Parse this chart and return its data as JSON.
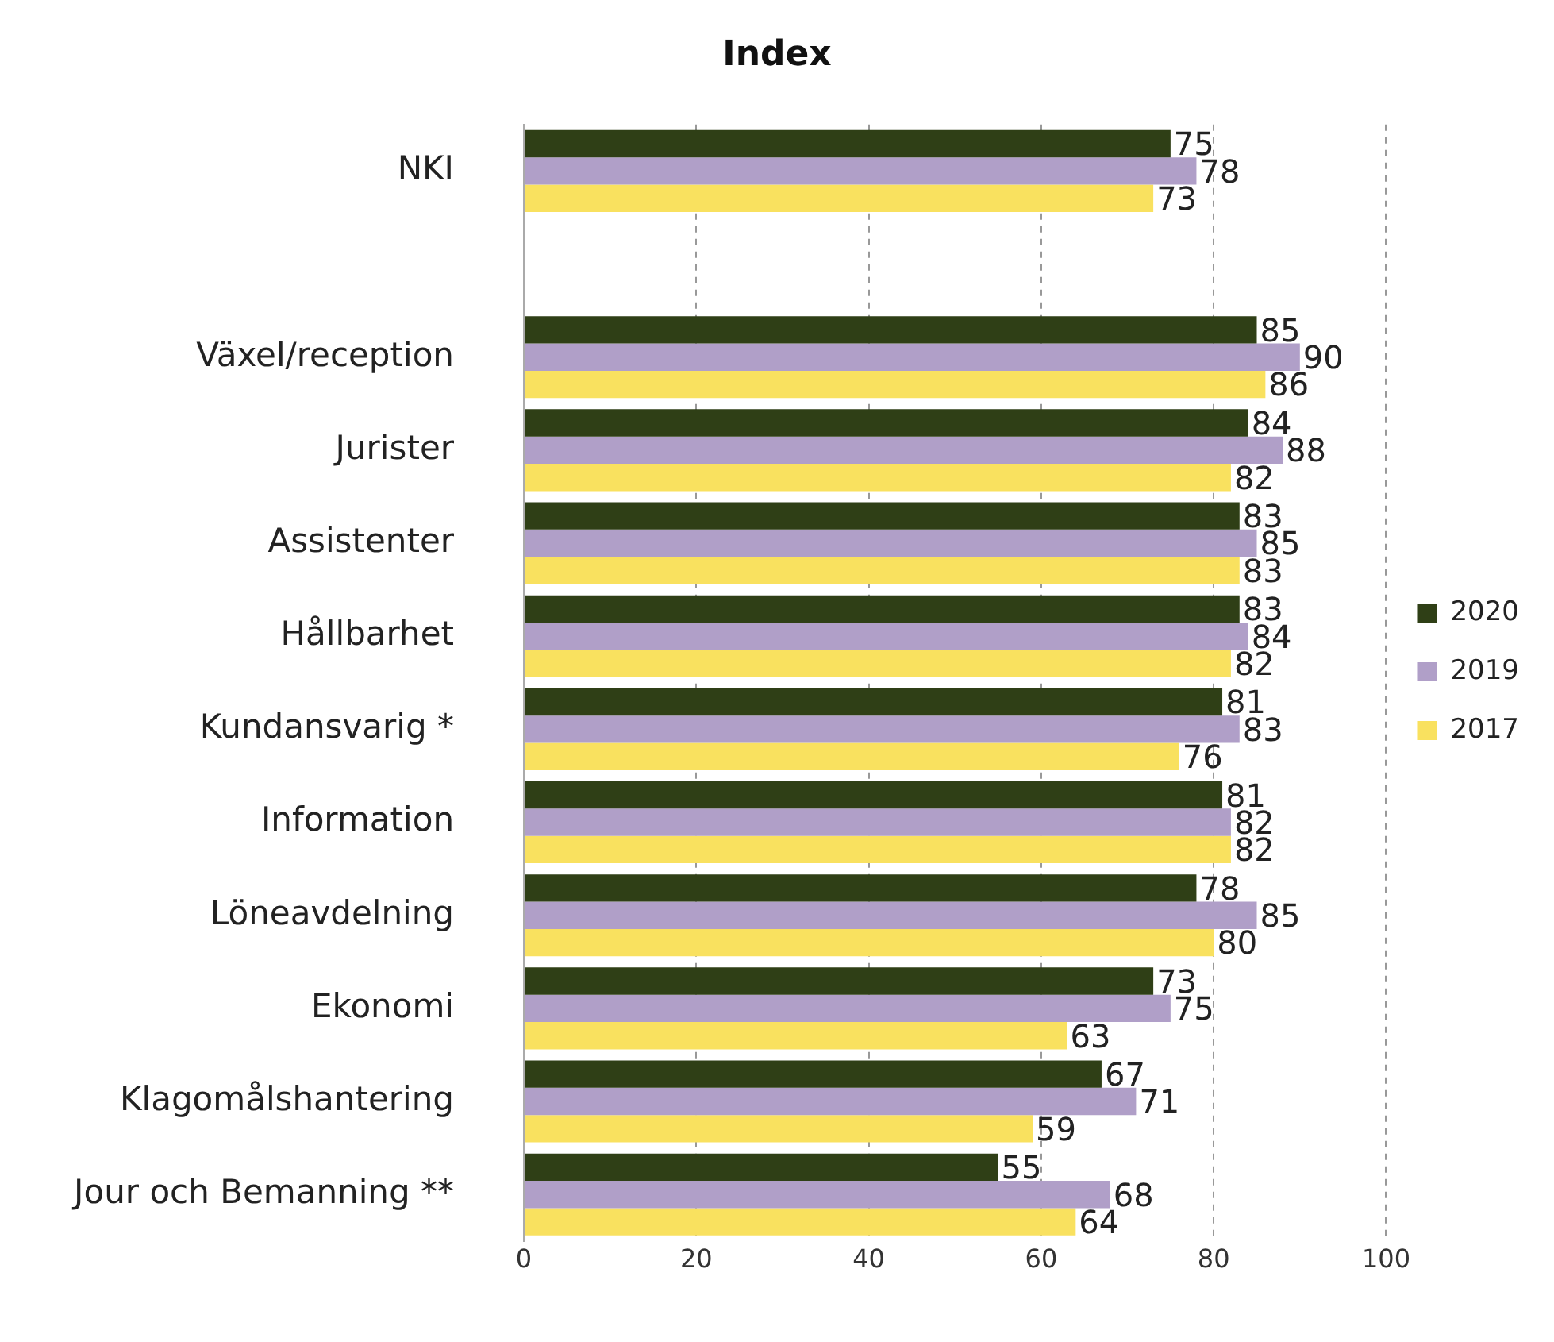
{
  "chart_data": {
    "type": "bar",
    "orientation": "horizontal",
    "title": "Index",
    "categories": [
      "NKI",
      null,
      "Växel/reception",
      "Jurister",
      "Assistenter",
      "Hållbarhet",
      "Kundansvarig *",
      "Information",
      "Löneavdelning",
      "Ekonomi",
      "Klagomålshantering",
      "Jour och Bemanning **"
    ],
    "series": [
      {
        "name": "2020",
        "color": "#2f3f16",
        "values": [
          75,
          null,
          85,
          84,
          83,
          83,
          81,
          81,
          78,
          73,
          67,
          55
        ]
      },
      {
        "name": "2019",
        "color": "#b09fc8",
        "values": [
          78,
          null,
          90,
          88,
          85,
          84,
          83,
          82,
          85,
          75,
          71,
          68
        ]
      },
      {
        "name": "2017",
        "color": "#f9e15f",
        "values": [
          73,
          null,
          86,
          82,
          83,
          82,
          76,
          82,
          80,
          63,
          59,
          64
        ]
      }
    ],
    "xlim": [
      0,
      100
    ],
    "xticks": [
      0,
      20,
      40,
      60,
      80,
      100
    ],
    "grid": "x",
    "legend": "right",
    "data_labels": true
  }
}
